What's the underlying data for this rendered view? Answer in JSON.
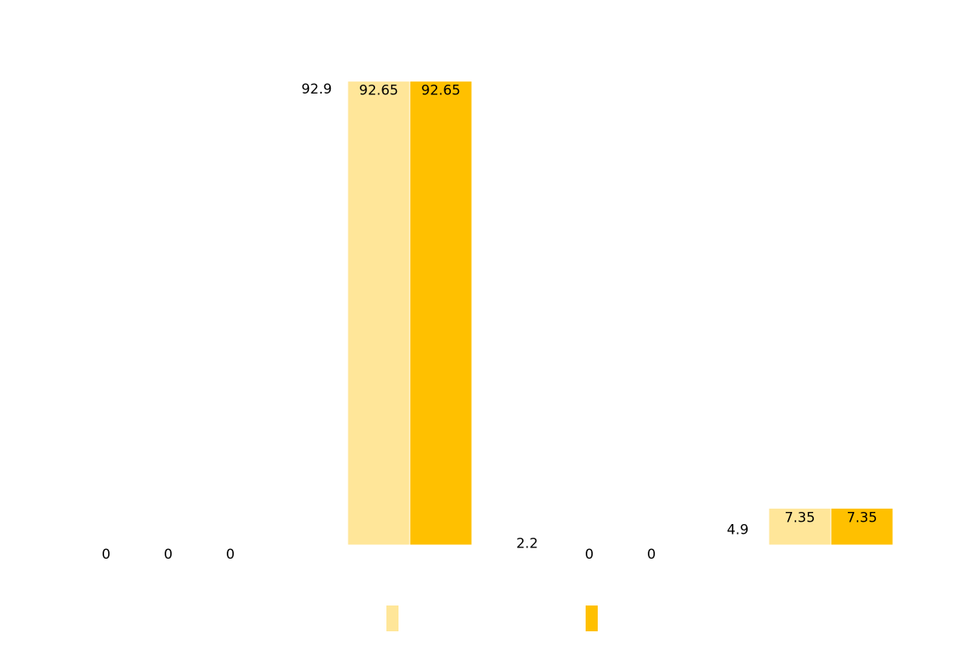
{
  "chart_data": {
    "type": "bar",
    "categories": [
      null,
      null,
      null,
      null
    ],
    "series": [
      {
        "color": "#ffffff",
        "values": [
          0,
          92.9,
          2.2,
          4.9
        ]
      },
      {
        "color": "#ffe699",
        "values": [
          0,
          92.65,
          0,
          7.35
        ]
      },
      {
        "color": "#ffc000",
        "values": [
          0,
          92.65,
          0,
          7.35
        ]
      }
    ],
    "ylim": [
      0,
      100
    ]
  }
}
